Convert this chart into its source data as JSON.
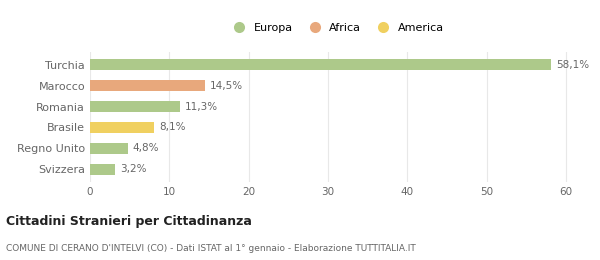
{
  "categories": [
    "Turchia",
    "Marocco",
    "Romania",
    "Brasile",
    "Regno Unito",
    "Svizzera"
  ],
  "values": [
    58.1,
    14.5,
    11.3,
    8.1,
    4.8,
    3.2
  ],
  "labels": [
    "58,1%",
    "14,5%",
    "11,3%",
    "8,1%",
    "4,8%",
    "3,2%"
  ],
  "bar_colors": [
    "#adc98a",
    "#e8a87c",
    "#adc98a",
    "#f0d060",
    "#adc98a",
    "#adc98a"
  ],
  "legend_items": [
    {
      "label": "Europa",
      "color": "#adc98a"
    },
    {
      "label": "Africa",
      "color": "#e8a87c"
    },
    {
      "label": "America",
      "color": "#f0d060"
    }
  ],
  "xlim": [
    0,
    62
  ],
  "xticks": [
    0,
    10,
    20,
    30,
    40,
    50,
    60
  ],
  "title": "Cittadini Stranieri per Cittadinanza",
  "subtitle": "COMUNE DI CERANO D'INTELVI (CO) - Dati ISTAT al 1° gennaio - Elaborazione TUTTITALIA.IT",
  "background_color": "#ffffff",
  "grid_color": "#e8e8e8",
  "bar_height": 0.55,
  "label_fontsize": 7.5,
  "ytick_fontsize": 8,
  "xtick_fontsize": 7.5,
  "title_fontsize": 9,
  "subtitle_fontsize": 6.5,
  "legend_fontsize": 8
}
